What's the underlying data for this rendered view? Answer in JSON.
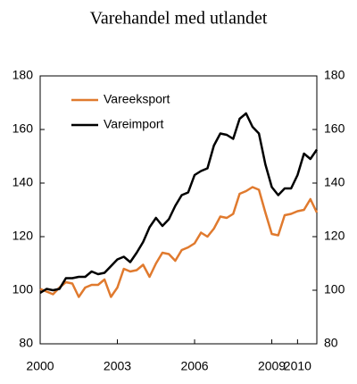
{
  "chart_data": {
    "type": "line",
    "title": "Varehandel med utlandet",
    "x": [
      2000,
      2000.25,
      2000.5,
      2000.75,
      2001,
      2001.25,
      2001.5,
      2001.75,
      2002,
      2002.25,
      2002.5,
      2002.75,
      2003,
      2003.25,
      2003.5,
      2003.75,
      2004,
      2004.25,
      2004.5,
      2004.75,
      2005,
      2005.25,
      2005.5,
      2005.75,
      2006,
      2006.25,
      2006.5,
      2006.75,
      2007,
      2007.25,
      2007.5,
      2007.75,
      2008,
      2008.25,
      2008.5,
      2008.75,
      2009,
      2009.25,
      2009.5,
      2009.75,
      2010,
      2010.25,
      2010.5,
      2010.75
    ],
    "series": [
      {
        "name": "Vareeksport",
        "color": "#e07a2e",
        "values": [
          100.5,
          99.5,
          98.5,
          101,
          103,
          102.5,
          97.5,
          101,
          102,
          102,
          104,
          97.5,
          101,
          108,
          107,
          107.5,
          109.5,
          105,
          110,
          114,
          113.5,
          111,
          115,
          116,
          117.5,
          121.5,
          120,
          123,
          127.5,
          127,
          128.5,
          136,
          137,
          138.5,
          137.5,
          129,
          121,
          120.5,
          128,
          128.5,
          129.5,
          130,
          134,
          129
        ]
      },
      {
        "name": "Vareimport",
        "color": "#000000",
        "values": [
          99,
          100.5,
          100,
          100.5,
          104.5,
          104.5,
          105,
          105,
          107,
          106,
          106.5,
          109,
          111.5,
          112.5,
          110.5,
          114,
          118,
          123.5,
          127,
          124,
          126.5,
          131.5,
          135.5,
          136.5,
          143,
          144.5,
          145.5,
          154,
          158.5,
          158,
          156.5,
          164,
          166,
          161,
          158.5,
          147,
          138.5,
          135.5,
          138,
          138,
          143,
          151,
          149,
          152.5
        ]
      }
    ],
    "xlim": [
      2000,
      2010.75
    ],
    "xticks": [
      2000,
      2003,
      2006,
      2009,
      2010
    ],
    "ylim": [
      80,
      180
    ],
    "yticks": [
      80,
      100,
      120,
      140,
      160,
      180
    ],
    "legend": "upper left"
  }
}
